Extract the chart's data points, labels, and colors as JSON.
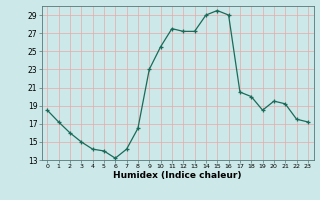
{
  "x": [
    0,
    1,
    2,
    3,
    4,
    5,
    6,
    7,
    8,
    9,
    10,
    11,
    12,
    13,
    14,
    15,
    16,
    17,
    18,
    19,
    20,
    21,
    22,
    23
  ],
  "y": [
    18.5,
    17.2,
    16.0,
    15.0,
    14.2,
    14.0,
    13.2,
    14.2,
    16.5,
    23.0,
    25.5,
    27.5,
    27.2,
    27.2,
    29.0,
    29.5,
    29.0,
    20.5,
    20.0,
    18.5,
    19.5,
    19.2,
    17.5,
    17.2
  ],
  "xlabel": "Humidex (Indice chaleur)",
  "bg_color": "#cce8e8",
  "line_color": "#1a6b5a",
  "marker_color": "#1a6b5a",
  "grid_color_v": "#e8aaaa",
  "grid_color_h": "#e8aaaa",
  "ylim": [
    13,
    30
  ],
  "xlim": [
    -0.5,
    23.5
  ],
  "yticks": [
    13,
    15,
    17,
    19,
    21,
    23,
    25,
    27,
    29
  ],
  "xticks": [
    0,
    1,
    2,
    3,
    4,
    5,
    6,
    7,
    8,
    9,
    10,
    11,
    12,
    13,
    14,
    15,
    16,
    17,
    18,
    19,
    20,
    21,
    22,
    23
  ]
}
